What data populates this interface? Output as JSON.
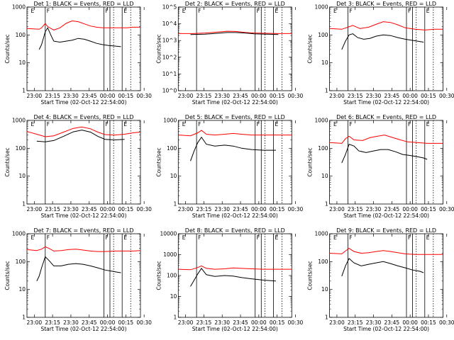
{
  "figure": {
    "start_time_label": "Start Time (02-Oct-12 22:54:00)",
    "ylabel": "Counts/sec",
    "marker_labels": [
      "E",
      "F",
      "F",
      "E"
    ]
  },
  "chart_data": [
    {
      "type": "line",
      "title": "Det 1: BLACK = Events, RED = LLD",
      "xlabel": "Start Time (02-Oct-12 22:54:00)",
      "ylabel": "Counts/sec",
      "x_ticks": [
        "23:00",
        "23:15",
        "23:30",
        "23:45",
        "00:00",
        "00:15",
        "00:30"
      ],
      "ylim": [
        1,
        1000
      ],
      "y_ticks": [
        "1",
        "10",
        "100",
        "1000"
      ],
      "yscale": "log",
      "x_minutes": [
        10,
        12,
        15,
        17,
        22,
        27,
        32,
        37,
        42,
        47,
        52,
        57,
        62,
        67,
        72,
        77
      ],
      "series": [
        {
          "name": "RED = LLD",
          "color": "#ff0000",
          "x": [
            0,
            10,
            12,
            15,
            17,
            22,
            27,
            32,
            37,
            42,
            47,
            52,
            57,
            62,
            67,
            72,
            77,
            82,
            87,
            93
          ],
          "values": [
            170,
            160,
            180,
            260,
            200,
            150,
            180,
            260,
            320,
            300,
            250,
            210,
            190,
            180,
            180,
            180,
            180,
            180,
            190,
            190
          ]
        },
        {
          "name": "BLACK = Events",
          "color": "#000000",
          "x": [
            10,
            12,
            15,
            17,
            20,
            22,
            27,
            32,
            37,
            42,
            47,
            52,
            57,
            62,
            67,
            72,
            77
          ],
          "values": [
            30,
            45,
            130,
            180,
            90,
            60,
            55,
            60,
            65,
            75,
            70,
            60,
            50,
            45,
            42,
            40,
            38
          ]
        }
      ]
    },
    {
      "type": "line",
      "title": "Det 2: BLACK = Events, RED = LLD",
      "xlabel": "Start Time (02-Oct-12 22:54:00)",
      "ylabel": "Counts/sec",
      "x_ticks": [
        "23:00",
        "23:15",
        "23:30",
        "23:45",
        "00:00",
        "00:15",
        "00:30"
      ],
      "ylim": [
        1,
        100000
      ],
      "y_ticks": [
        "10^0",
        "10^1",
        "10^2",
        "10^3",
        "10^4",
        "10^5"
      ],
      "yscale": "log",
      "series": [
        {
          "name": "RED = LLD",
          "color": "#ff0000",
          "x": [
            0,
            12,
            22,
            32,
            40,
            47,
            55,
            62,
            72,
            82,
            93
          ],
          "values": [
            2600,
            2600,
            2800,
            3200,
            3600,
            3500,
            3000,
            2800,
            2700,
            2600,
            2600
          ]
        },
        {
          "name": "BLACK = Events",
          "color": "#000000",
          "x": [
            10,
            22,
            32,
            40,
            47,
            55,
            62,
            72,
            82
          ],
          "values": [
            2300,
            2400,
            2700,
            3000,
            3000,
            2800,
            2500,
            2400,
            2300
          ]
        }
      ]
    },
    {
      "type": "line",
      "title": "Det 3: BLACK = Events, RED = LLD",
      "xlabel": "Start Time (02-Oct-12 22:54:00)",
      "ylabel": "Counts/sec",
      "x_ticks": [
        "23:00",
        "23:15",
        "23:30",
        "23:45",
        "00:00",
        "00:15",
        "00:30"
      ],
      "ylim": [
        1,
        1000
      ],
      "y_ticks": [
        "1",
        "10",
        "100",
        "1000"
      ],
      "yscale": "log",
      "series": [
        {
          "name": "RED = LLD",
          "color": "#ff0000",
          "x": [
            0,
            10,
            15,
            19,
            25,
            32,
            38,
            44,
            50,
            56,
            62,
            70,
            78,
            86,
            93
          ],
          "values": [
            170,
            160,
            190,
            220,
            170,
            190,
            240,
            300,
            280,
            230,
            180,
            160,
            150,
            160,
            160
          ]
        },
        {
          "name": "BLACK = Events",
          "color": "#000000",
          "x": [
            10,
            13,
            16,
            19,
            23,
            28,
            33,
            38,
            44,
            50,
            56,
            62,
            67,
            72,
            77
          ],
          "values": [
            30,
            60,
            100,
            110,
            80,
            70,
            75,
            90,
            100,
            95,
            80,
            70,
            65,
            60,
            55
          ]
        }
      ]
    },
    {
      "type": "line",
      "title": "Det 4: BLACK = Events, RED = LLD",
      "xlabel": "Start Time (02-Oct-12 22:54:00)",
      "ylabel": "Counts/sec",
      "x_ticks": [
        "23:00",
        "23:15",
        "23:30",
        "23:45",
        "00:00",
        "00:15",
        "00:30"
      ],
      "ylim": [
        1,
        1000
      ],
      "y_ticks": [
        "1",
        "10",
        "100",
        "1000"
      ],
      "yscale": "log",
      "series": [
        {
          "name": "RED = LLD",
          "color": "#ff0000",
          "x": [
            0,
            8,
            15,
            22,
            30,
            38,
            45,
            52,
            58,
            64,
            72,
            80,
            87,
            93
          ],
          "values": [
            400,
            320,
            260,
            280,
            380,
            520,
            580,
            500,
            380,
            310,
            300,
            320,
            360,
            380
          ]
        },
        {
          "name": "BLACK = Events",
          "color": "#000000",
          "x": [
            8,
            15,
            22,
            30,
            38,
            45,
            52,
            58,
            64,
            72,
            80
          ],
          "values": [
            180,
            170,
            190,
            270,
            390,
            450,
            380,
            270,
            210,
            200,
            210
          ]
        }
      ]
    },
    {
      "type": "line",
      "title": "Det 5: BLACK = Events, RED = LLD",
      "xlabel": "Start Time (02-Oct-12 22:54:00)",
      "ylabel": "Counts/sec",
      "x_ticks": [
        "23:00",
        "23:15",
        "23:30",
        "23:45",
        "00:00",
        "00:15",
        "00:30"
      ],
      "ylim": [
        1,
        1000
      ],
      "y_ticks": [
        "1",
        "10",
        "100",
        "1000"
      ],
      "yscale": "log",
      "series": [
        {
          "name": "RED = LLD",
          "color": "#ff0000",
          "x": [
            0,
            10,
            16,
            19,
            23,
            30,
            38,
            45,
            52,
            60,
            70,
            80,
            93
          ],
          "values": [
            300,
            280,
            360,
            440,
            320,
            300,
            320,
            340,
            320,
            300,
            300,
            300,
            300
          ]
        },
        {
          "name": "BLACK = Events",
          "color": "#000000",
          "x": [
            10,
            13,
            16,
            19,
            23,
            30,
            38,
            45,
            52,
            60,
            70,
            80
          ],
          "values": [
            35,
            80,
            160,
            250,
            140,
            120,
            130,
            120,
            100,
            90,
            85,
            85
          ]
        }
      ]
    },
    {
      "type": "line",
      "title": "Det 6: BLACK = Events, RED = LLD",
      "xlabel": "Start Time (02-Oct-12 22:54:00)",
      "ylabel": "Counts/sec",
      "x_ticks": [
        "23:00",
        "23:15",
        "23:30",
        "23:45",
        "00:00",
        "00:15",
        "00:30"
      ],
      "ylim": [
        1,
        1000
      ],
      "y_ticks": [
        "1",
        "10",
        "100",
        "1000"
      ],
      "yscale": "log",
      "series": [
        {
          "name": "RED = LLD",
          "color": "#ff0000",
          "x": [
            0,
            10,
            13,
            16,
            20,
            27,
            33,
            39,
            45,
            52,
            58,
            64,
            72,
            80,
            86,
            93
          ],
          "values": [
            160,
            150,
            220,
            270,
            200,
            190,
            240,
            270,
            300,
            240,
            200,
            170,
            160,
            150,
            150,
            150
          ]
        },
        {
          "name": "BLACK = Events",
          "color": "#000000",
          "x": [
            10,
            13,
            16,
            20,
            24,
            30,
            36,
            42,
            48,
            54,
            60,
            66,
            72,
            77,
            80
          ],
          "values": [
            30,
            60,
            140,
            120,
            80,
            70,
            80,
            90,
            90,
            75,
            60,
            55,
            50,
            45,
            40
          ]
        }
      ]
    },
    {
      "type": "line",
      "title": "Det 7: BLACK = Events, RED = LLD",
      "xlabel": "Start Time (02-Oct-12 22:54:00)",
      "ylabel": "Counts/sec",
      "x_ticks": [
        "23:00",
        "23:15",
        "23:30",
        "23:45",
        "00:00",
        "00:15",
        "00:30"
      ],
      "ylim": [
        1,
        1000
      ],
      "y_ticks": [
        "1",
        "10",
        "100",
        "1000"
      ],
      "yscale": "log",
      "series": [
        {
          "name": "RED = LLD",
          "color": "#ff0000",
          "x": [
            0,
            8,
            12,
            15,
            18,
            22,
            28,
            34,
            40,
            46,
            52,
            58,
            64,
            72,
            80,
            87,
            93
          ],
          "values": [
            270,
            250,
            280,
            340,
            300,
            240,
            250,
            270,
            280,
            260,
            240,
            230,
            230,
            240,
            240,
            240,
            250
          ]
        },
        {
          "name": "BLACK = Events",
          "color": "#000000",
          "x": [
            8,
            10,
            12,
            15,
            18,
            22,
            28,
            34,
            40,
            46,
            52,
            58,
            64,
            70,
            74,
            77
          ],
          "values": [
            20,
            30,
            60,
            150,
            110,
            70,
            70,
            80,
            85,
            80,
            70,
            60,
            50,
            45,
            42,
            40
          ]
        }
      ]
    },
    {
      "type": "line",
      "title": "Det 8: BLACK = Events, RED = LLD",
      "xlabel": "Start Time (02-Oct-12 22:54:00)",
      "ylabel": "Counts/sec",
      "x_ticks": [
        "23:00",
        "23:15",
        "23:30",
        "23:45",
        "00:00",
        "00:15",
        "00:30"
      ],
      "ylim": [
        1,
        10000
      ],
      "y_ticks": [
        "1",
        "10",
        "100",
        "1000",
        "10000"
      ],
      "yscale": "log",
      "series": [
        {
          "name": "RED = LLD",
          "color": "#ff0000",
          "x": [
            0,
            10,
            15,
            19,
            23,
            30,
            38,
            45,
            52,
            60,
            70,
            80,
            93
          ],
          "values": [
            200,
            190,
            230,
            290,
            220,
            200,
            210,
            230,
            220,
            210,
            200,
            200,
            200
          ]
        },
        {
          "name": "BLACK = Events",
          "color": "#000000",
          "x": [
            10,
            13,
            16,
            19,
            23,
            30,
            38,
            45,
            52,
            60,
            70,
            80
          ],
          "values": [
            30,
            60,
            120,
            220,
            110,
            90,
            100,
            95,
            80,
            70,
            60,
            55
          ]
        }
      ]
    },
    {
      "type": "line",
      "title": "Det 9: BLACK = Events, RED = LLD",
      "xlabel": "Start Time (02-Oct-12 22:54:00)",
      "ylabel": "Counts/sec",
      "x_ticks": [
        "23:00",
        "23:15",
        "23:30",
        "23:45",
        "00:00",
        "00:15",
        "00:30"
      ],
      "ylim": [
        1,
        1000
      ],
      "y_ticks": [
        "1",
        "10",
        "100",
        "1000"
      ],
      "yscale": "log",
      "series": [
        {
          "name": "RED = LLD",
          "color": "#ff0000",
          "x": [
            0,
            10,
            13,
            16,
            20,
            26,
            32,
            38,
            44,
            50,
            56,
            62,
            70,
            78,
            86,
            93
          ],
          "values": [
            200,
            190,
            240,
            300,
            230,
            200,
            210,
            230,
            250,
            230,
            210,
            190,
            180,
            180,
            180,
            180
          ]
        },
        {
          "name": "BLACK = Events",
          "color": "#000000",
          "x": [
            10,
            13,
            16,
            20,
            26,
            32,
            38,
            44,
            50,
            56,
            62,
            68,
            74,
            77
          ],
          "values": [
            30,
            70,
            130,
            90,
            70,
            80,
            90,
            100,
            85,
            70,
            60,
            50,
            45,
            40
          ]
        }
      ]
    }
  ],
  "markers_minutes": {
    "solid": [
      15,
      63,
      68,
      78
    ],
    "dotted": [
      71,
      85
    ]
  }
}
